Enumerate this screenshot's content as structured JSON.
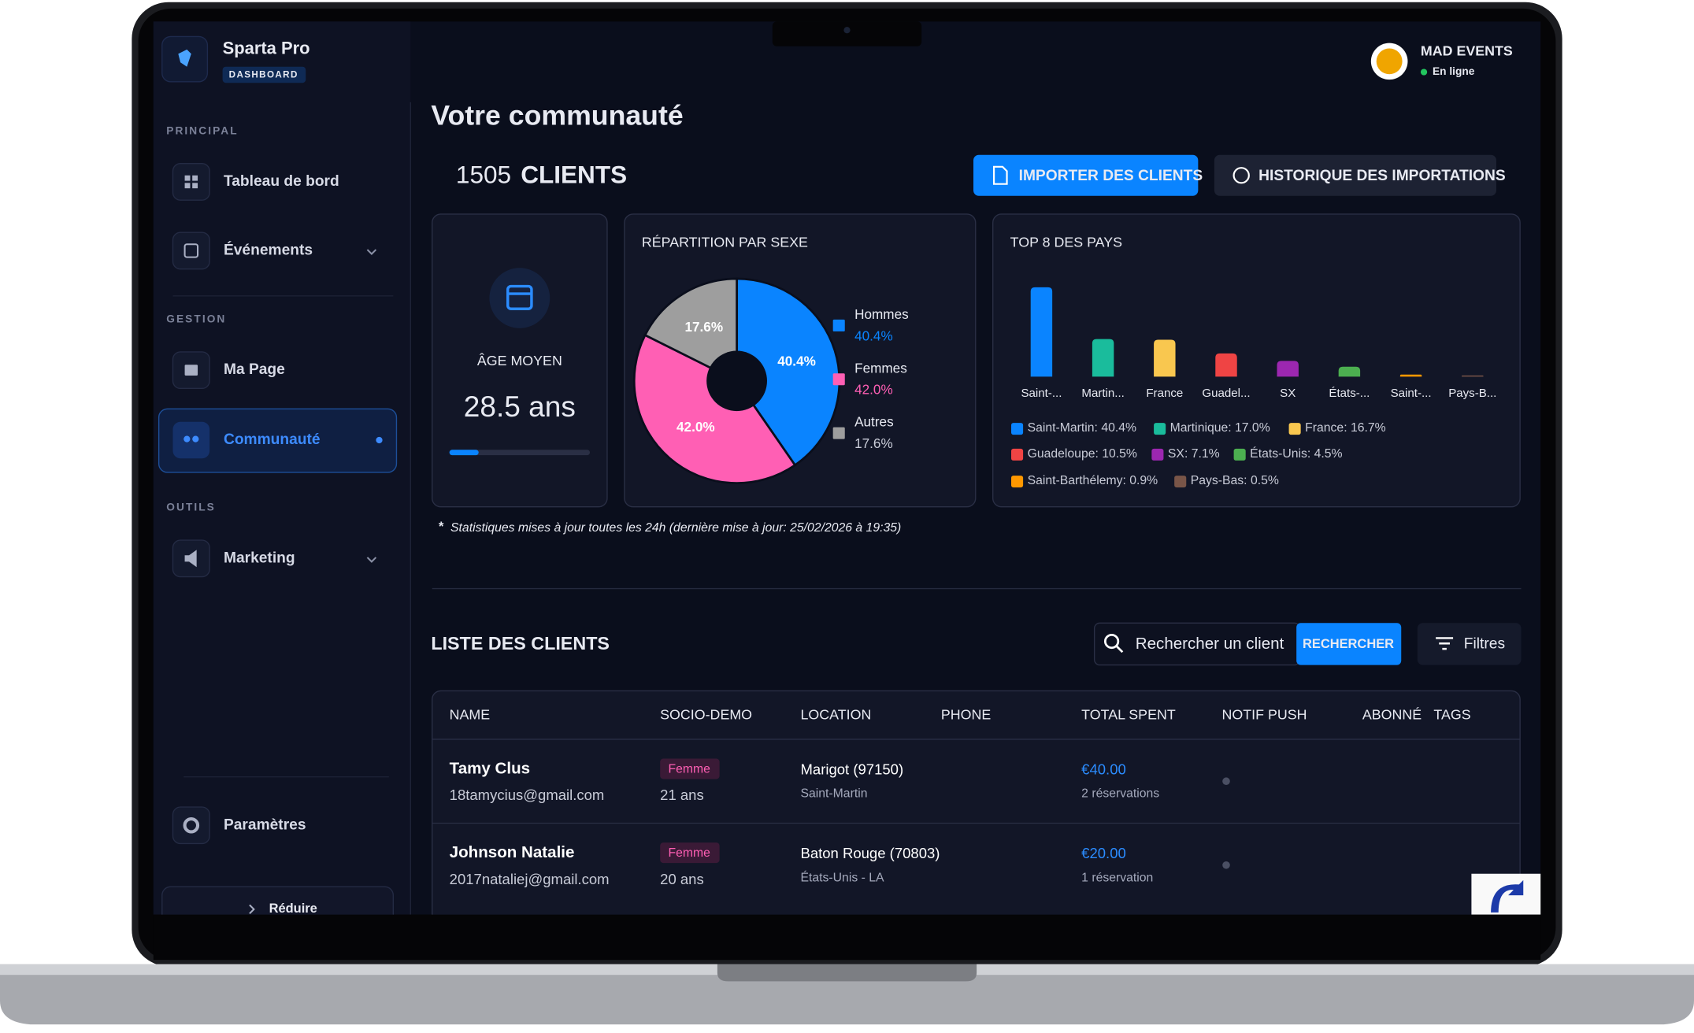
{
  "sidebar": {
    "brand": "Sparta Pro",
    "badge": "DASHBOARD",
    "sections": [
      {
        "title": "PRINCIPAL",
        "items": [
          "Tableau de bord",
          "Événements"
        ]
      },
      {
        "title": "GESTION",
        "items": [
          "Ma Page",
          "Communauté"
        ]
      },
      {
        "title": "OUTILS",
        "items": [
          "Marketing"
        ]
      }
    ],
    "settings": "Paramètres",
    "collapse": "Réduire"
  },
  "header": {
    "account": "MAD EVENTS",
    "status": "En ligne"
  },
  "page": {
    "title": "Votre communauté",
    "client_count": 1505,
    "client_label": "CLIENTS",
    "import_button": "IMPORTER DES CLIENTS",
    "history_button": "HISTORIQUE DES IMPORTATIONS",
    "age_card": {
      "label": "ÂGE MOYEN",
      "value": "28.5 ans"
    },
    "footnote_marker": "*",
    "footnote": "Statistiques mises à jour toutes les 24h (dernière mise à jour: 25/02/2026 à 19:35)",
    "list_title": "LISTE DES CLIENTS",
    "search_placeholder": "Rechercher un client",
    "search_button": "RECHERCHER",
    "filters_button": "Filtres"
  },
  "chart_data": [
    {
      "type": "pie",
      "title": "RÉPARTITION PAR SEXE",
      "categories": [
        "Hommes",
        "Femmes",
        "Autres"
      ],
      "values": [
        40.4,
        42.0,
        17.6
      ],
      "value_labels": [
        "40.4%",
        "42.0%",
        "17.6%"
      ],
      "colors": [
        "#0a84ff",
        "#ff5fb4",
        "#9e9e9e"
      ]
    },
    {
      "type": "bar",
      "title": "TOP 8 DES PAYS",
      "categories": [
        "Saint-...",
        "Martin...",
        "France",
        "Guadel...",
        "SX",
        "États-...",
        "Saint-...",
        "Pays-B..."
      ],
      "values": [
        40.4,
        17.0,
        16.7,
        10.5,
        7.1,
        4.5,
        0.9,
        0.5
      ],
      "colors": [
        "#0a84ff",
        "#1abc9c",
        "#f9c74f",
        "#ef4444",
        "#9c27b0",
        "#4caf50",
        "#ff9800",
        "#795548"
      ],
      "legend": [
        "Saint-Martin: 40.4%",
        "Martinique: 17.0%",
        "France: 16.7%",
        "Guadeloupe: 10.5%",
        "SX: 7.1%",
        "États-Unis: 4.5%",
        "Saint-Barthélemy: 0.9%",
        "Pays-Bas: 0.5%"
      ]
    }
  ],
  "table": {
    "columns": [
      "NAME",
      "SOCIO-DEMO",
      "LOCATION",
      "PHONE",
      "TOTAL SPENT",
      "NOTIF PUSH",
      "ABONNÉ",
      "TAGS"
    ],
    "rows": [
      {
        "name": "Tamy Clus",
        "email": "18tamycius@gmail.com",
        "gender": "Femme",
        "age": "21 ans",
        "location": "Marigot (97150)",
        "region": "Saint-Martin",
        "total_spent": "€40.00",
        "reservations": "2 réservations"
      },
      {
        "name": "Johnson Natalie",
        "email": "2017nataliej@gmail.com",
        "gender": "Femme",
        "age": "20 ans",
        "location": "Baton Rouge (70803)",
        "region": "États-Unis - LA",
        "total_spent": "€20.00",
        "reservations": "1 réservation"
      }
    ]
  }
}
